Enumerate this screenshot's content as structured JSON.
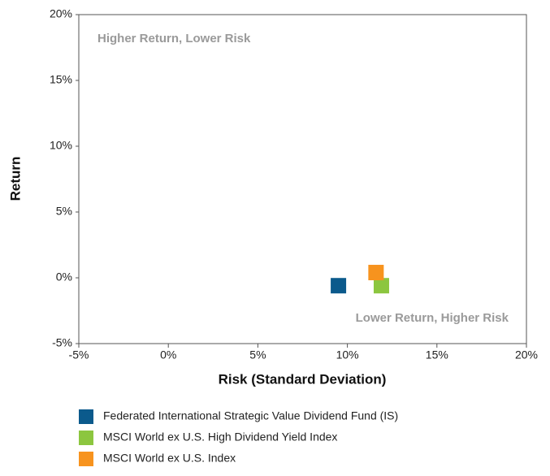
{
  "chart_data": {
    "type": "scatter",
    "xlabel": "Risk (Standard Deviation)",
    "ylabel": "Return",
    "annotations": [
      "Higher Return, Lower Risk",
      "Lower Return, Higher Risk"
    ],
    "xlim": [
      -5,
      20
    ],
    "xticks": [
      {
        "value": -5,
        "label": "-5%"
      },
      {
        "value": 0,
        "label": "0%"
      },
      {
        "value": 5,
        "label": "5%"
      },
      {
        "value": 10,
        "label": "10%"
      },
      {
        "value": 15,
        "label": "15%"
      },
      {
        "value": 20,
        "label": "20%"
      }
    ],
    "ylim": [
      -5,
      20
    ],
    "yticks": [
      {
        "value": -5,
        "label": "-5%"
      },
      {
        "value": 0,
        "label": "0%"
      },
      {
        "value": 5,
        "label": "5%"
      },
      {
        "value": 10,
        "label": "10%"
      },
      {
        "value": 15,
        "label": "15%"
      },
      {
        "value": 20,
        "label": "20%"
      }
    ],
    "series": [
      {
        "name": "Federated International Strategic Value Dividend Fund (IS)",
        "color": "#0b5a8c",
        "x": [
          9.5
        ],
        "values": [
          -0.6
        ]
      },
      {
        "name": "MSCI World ex U.S. High Dividend Yield Index",
        "color": "#8cc63f",
        "x": [
          11.9
        ],
        "values": [
          -0.6
        ]
      },
      {
        "name": "MSCI World ex U.S. Index",
        "color": "#f7931e",
        "x": [
          11.6
        ],
        "values": [
          0.4
        ]
      }
    ]
  }
}
